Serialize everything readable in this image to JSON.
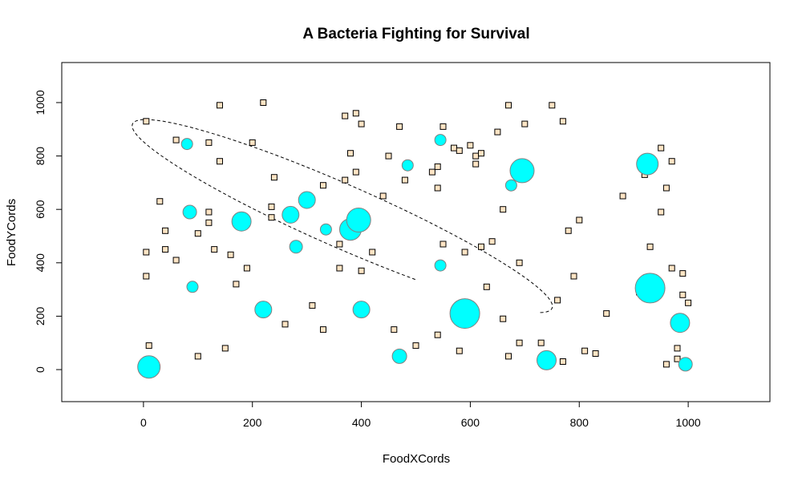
{
  "chart_data": {
    "type": "scatter",
    "title": "A Bacteria Fighting for Survival",
    "xlabel": "FoodXCords",
    "ylabel": "FoodYCords",
    "xlim": [
      -150,
      1150
    ],
    "ylim": [
      -120,
      1150
    ],
    "xticks": [
      0,
      200,
      400,
      600,
      800,
      1000
    ],
    "yticks": [
      0,
      200,
      400,
      600,
      800,
      1000
    ],
    "grid": false,
    "colors": {
      "food_fill": "#ffe4c4",
      "food_stroke": "#000000",
      "bacteria_fill": "#00ffff",
      "bacteria_stroke": "#808080",
      "path": "#000000"
    },
    "food": [
      [
        5,
        930
      ],
      [
        140,
        990
      ],
      [
        220,
        1000
      ],
      [
        370,
        950
      ],
      [
        390,
        960
      ],
      [
        400,
        920
      ],
      [
        470,
        910
      ],
      [
        550,
        910
      ],
      [
        670,
        990
      ],
      [
        750,
        990
      ],
      [
        770,
        930
      ],
      [
        700,
        920
      ],
      [
        650,
        890
      ],
      [
        60,
        860
      ],
      [
        120,
        850
      ],
      [
        200,
        850
      ],
      [
        380,
        810
      ],
      [
        450,
        800
      ],
      [
        570,
        830
      ],
      [
        580,
        820
      ],
      [
        600,
        840
      ],
      [
        610,
        800
      ],
      [
        620,
        810
      ],
      [
        610,
        770
      ],
      [
        530,
        740
      ],
      [
        540,
        760
      ],
      [
        480,
        710
      ],
      [
        370,
        710
      ],
      [
        390,
        740
      ],
      [
        240,
        720
      ],
      [
        140,
        780
      ],
      [
        30,
        630
      ],
      [
        120,
        590
      ],
      [
        120,
        550
      ],
      [
        100,
        510
      ],
      [
        40,
        520
      ],
      [
        5,
        440
      ],
      [
        40,
        450
      ],
      [
        60,
        410
      ],
      [
        130,
        450
      ],
      [
        160,
        430
      ],
      [
        170,
        320
      ],
      [
        190,
        380
      ],
      [
        235,
        610
      ],
      [
        235,
        570
      ],
      [
        330,
        690
      ],
      [
        440,
        650
      ],
      [
        540,
        680
      ],
      [
        360,
        470
      ],
      [
        550,
        470
      ],
      [
        620,
        460
      ],
      [
        640,
        480
      ],
      [
        690,
        400
      ],
      [
        590,
        440
      ],
      [
        5,
        350
      ],
      [
        10,
        90
      ],
      [
        100,
        50
      ],
      [
        150,
        80
      ],
      [
        260,
        170
      ],
      [
        310,
        240
      ],
      [
        330,
        150
      ],
      [
        360,
        380
      ],
      [
        400,
        370
      ],
      [
        420,
        440
      ],
      [
        460,
        150
      ],
      [
        500,
        90
      ],
      [
        540,
        130
      ],
      [
        580,
        70
      ],
      [
        630,
        310
      ],
      [
        660,
        190
      ],
      [
        670,
        50
      ],
      [
        690,
        100
      ],
      [
        730,
        100
      ],
      [
        760,
        260
      ],
      [
        770,
        30
      ],
      [
        810,
        70
      ],
      [
        830,
        60
      ],
      [
        850,
        210
      ],
      [
        790,
        350
      ],
      [
        800,
        560
      ],
      [
        880,
        650
      ],
      [
        910,
        290
      ],
      [
        930,
        270
      ],
      [
        920,
        730
      ],
      [
        950,
        590
      ],
      [
        960,
        680
      ],
      [
        950,
        830
      ],
      [
        970,
        780
      ],
      [
        930,
        460
      ],
      [
        970,
        380
      ],
      [
        990,
        360
      ],
      [
        990,
        280
      ],
      [
        1000,
        250
      ],
      [
        960,
        20
      ],
      [
        980,
        80
      ],
      [
        980,
        40
      ],
      [
        660,
        600
      ],
      [
        600,
        180
      ],
      [
        780,
        520
      ]
    ],
    "bacteria": [
      [
        10,
        10,
        28
      ],
      [
        80,
        845,
        14
      ],
      [
        85,
        590,
        17
      ],
      [
        90,
        310,
        14
      ],
      [
        180,
        555,
        24
      ],
      [
        220,
        225,
        21
      ],
      [
        270,
        580,
        21
      ],
      [
        280,
        460,
        16
      ],
      [
        300,
        635,
        21
      ],
      [
        335,
        525,
        14
      ],
      [
        380,
        525,
        27
      ],
      [
        395,
        560,
        30
      ],
      [
        400,
        225,
        21
      ],
      [
        470,
        50,
        18
      ],
      [
        485,
        765,
        14
      ],
      [
        545,
        860,
        14
      ],
      [
        545,
        390,
        14
      ],
      [
        590,
        210,
        37
      ],
      [
        675,
        690,
        14
      ],
      [
        695,
        745,
        30
      ],
      [
        740,
        35,
        24
      ],
      [
        925,
        770,
        27
      ],
      [
        930,
        305,
        37
      ],
      [
        985,
        175,
        24
      ],
      [
        995,
        20,
        17
      ]
    ],
    "path_ellipse": {
      "cx": 365,
      "cy": 575,
      "rx": 520,
      "ry": 95,
      "angle_deg": -43,
      "start_deg": -10,
      "end_deg": 300
    }
  }
}
